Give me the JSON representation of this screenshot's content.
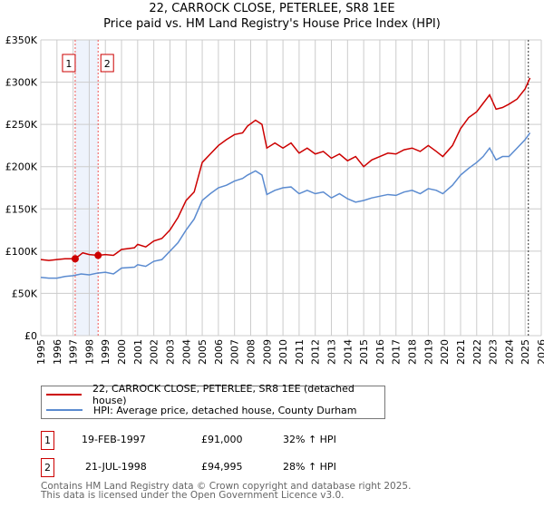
{
  "chart_data": {
    "type": "line",
    "title": "22, CARROCK CLOSE, PETERLEE, SR8 1EE",
    "subtitle": "Price paid vs. HM Land Registry's House Price Index (HPI)",
    "xlim": [
      1995,
      2026
    ],
    "ylim": [
      0,
      350000
    ],
    "x_ticks": [
      "1995",
      "1996",
      "1997",
      "1998",
      "1999",
      "2000",
      "2001",
      "2002",
      "2003",
      "2004",
      "2005",
      "2006",
      "2007",
      "2008",
      "2009",
      "2010",
      "2011",
      "2012",
      "2013",
      "2014",
      "2015",
      "2016",
      "2017",
      "2018",
      "2019",
      "2020",
      "2021",
      "2022",
      "2023",
      "2024",
      "2025",
      "2026"
    ],
    "y_ticks": [
      {
        "v": 0,
        "label": "£0"
      },
      {
        "v": 50000,
        "label": "£50K"
      },
      {
        "v": 100000,
        "label": "£100K"
      },
      {
        "v": 150000,
        "label": "£150K"
      },
      {
        "v": 200000,
        "label": "£200K"
      },
      {
        "v": 250000,
        "label": "£250K"
      },
      {
        "v": 300000,
        "label": "£300K"
      },
      {
        "v": 350000,
        "label": "£350K"
      }
    ],
    "grid": true,
    "series": [
      {
        "name": "22, CARROCK CLOSE, PETERLEE, SR8 1EE (detached house)",
        "color": "#cc0000",
        "x": [
          1995,
          1995.5,
          1996,
          1996.5,
          1997.13,
          1997.6,
          1998,
          1998.55,
          1999,
          1999.5,
          2000,
          2000.8,
          2001,
          2001.5,
          2002,
          2002.5,
          2003,
          2003.5,
          2004,
          2004.5,
          2005,
          2005.5,
          2006,
          2006.5,
          2007,
          2007.5,
          2007.8,
          2008.3,
          2008.7,
          2009,
          2009.5,
          2010,
          2010.5,
          2011,
          2011.5,
          2012,
          2012.5,
          2013,
          2013.5,
          2014,
          2014.5,
          2015,
          2015.5,
          2016,
          2016.5,
          2017,
          2017.5,
          2018,
          2018.5,
          2019,
          2019.5,
          2019.9,
          2020.5,
          2021,
          2021.5,
          2022,
          2022.4,
          2022.8,
          2023.2,
          2023.6,
          2024,
          2024.5,
          2025,
          2025.3
        ],
        "y": [
          90000,
          89000,
          90000,
          91000,
          91000,
          98000,
          96000,
          94995,
          96000,
          95000,
          102000,
          104000,
          108000,
          105000,
          112000,
          115000,
          125000,
          140000,
          160000,
          170000,
          205000,
          215000,
          225000,
          232000,
          238000,
          240000,
          248000,
          255000,
          250000,
          222000,
          228000,
          222000,
          228000,
          216000,
          222000,
          215000,
          218000,
          210000,
          215000,
          207000,
          212000,
          200000,
          208000,
          212000,
          216000,
          215000,
          220000,
          222000,
          218000,
          225000,
          218000,
          212000,
          225000,
          245000,
          258000,
          265000,
          275000,
          285000,
          268000,
          270000,
          274000,
          280000,
          292000,
          305000
        ]
      },
      {
        "name": "HPI: Average price, detached house, County Durham",
        "color": "#5b8bd0",
        "x": [
          1995,
          1995.5,
          1996,
          1996.5,
          1997,
          1997.5,
          1998,
          1998.5,
          1999,
          1999.5,
          2000,
          2000.8,
          2001,
          2001.5,
          2002,
          2002.5,
          2003,
          2003.5,
          2004,
          2004.5,
          2005,
          2005.5,
          2006,
          2006.5,
          2007,
          2007.5,
          2007.8,
          2008.3,
          2008.7,
          2009,
          2009.5,
          2010,
          2010.5,
          2011,
          2011.5,
          2012,
          2012.5,
          2013,
          2013.5,
          2014,
          2014.5,
          2015,
          2015.5,
          2016,
          2016.5,
          2017,
          2017.5,
          2018,
          2018.5,
          2019,
          2019.5,
          2019.9,
          2020.5,
          2021,
          2021.5,
          2022,
          2022.4,
          2022.8,
          2023.2,
          2023.6,
          2024,
          2024.5,
          2025,
          2025.3
        ],
        "y": [
          69000,
          68000,
          68000,
          70000,
          71000,
          73000,
          72000,
          74000,
          75000,
          73000,
          80000,
          81000,
          84000,
          82000,
          88000,
          90000,
          100000,
          110000,
          125000,
          138000,
          160000,
          168000,
          175000,
          178000,
          183000,
          186000,
          190000,
          195000,
          190000,
          167000,
          172000,
          175000,
          176000,
          168000,
          172000,
          168000,
          170000,
          163000,
          168000,
          162000,
          158000,
          160000,
          163000,
          165000,
          167000,
          166000,
          170000,
          172000,
          168000,
          174000,
          172000,
          168000,
          178000,
          190000,
          198000,
          205000,
          212000,
          222000,
          208000,
          212000,
          212000,
          222000,
          232000,
          240000
        ]
      }
    ],
    "annotations": [
      {
        "id": "1",
        "x": 1997.13,
        "y": 91000
      },
      {
        "id": "2",
        "x": 1998.55,
        "y": 94995
      }
    ],
    "shaded_range": [
      1997.13,
      1998.55
    ],
    "marker_line_x": 2025.2,
    "legend": "below"
  },
  "transactions": [
    {
      "id": "1",
      "date": "19-FEB-1997",
      "price": "£91,000",
      "hpi": "32% ↑ HPI"
    },
    {
      "id": "2",
      "date": "21-JUL-1998",
      "price": "£94,995",
      "hpi": "28% ↑ HPI"
    }
  ],
  "footer": {
    "line1": "Contains HM Land Registry data © Crown copyright and database right 2025.",
    "line2": "This data is licensed under the Open Government Licence v3.0."
  }
}
